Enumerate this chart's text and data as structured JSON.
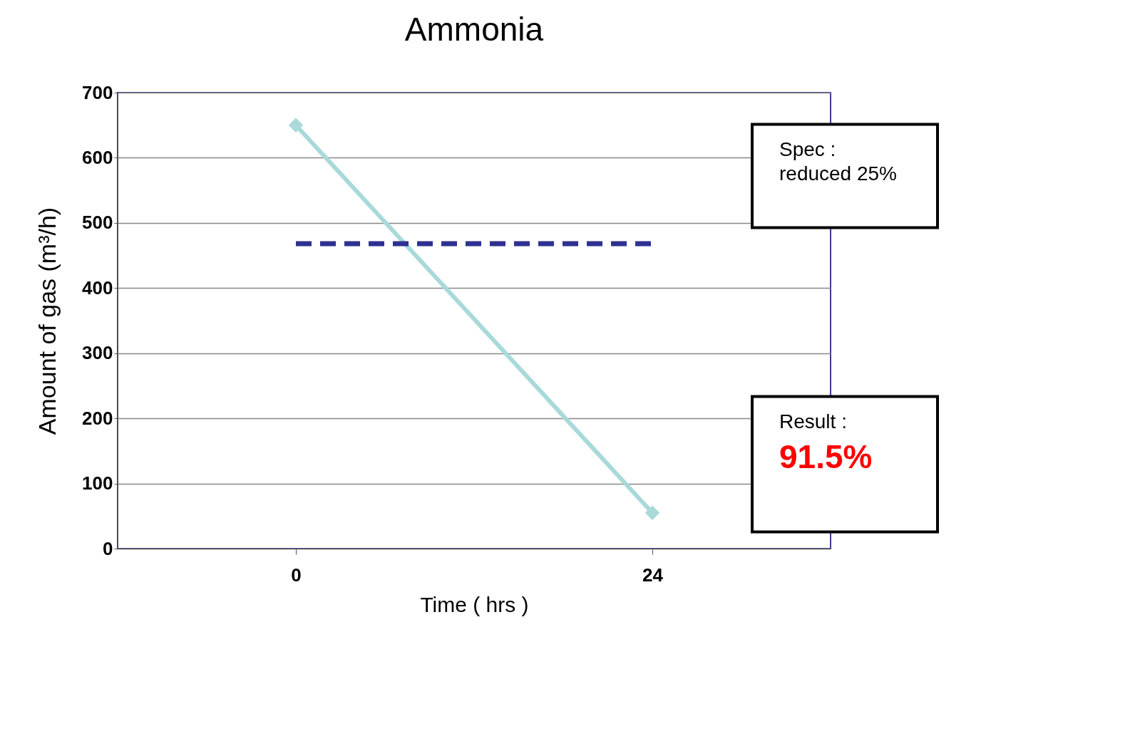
{
  "chart_data": {
    "type": "line",
    "title": "Ammonia",
    "xlabel": "Time ( hrs )",
    "ylabel": "Amount of gas (m³/h)",
    "categories": [
      "0",
      "24"
    ],
    "series": [
      {
        "color": "#a9d9d9",
        "values": [
          650,
          55
        ]
      }
    ],
    "ylim": [
      0,
      700
    ],
    "yticks": [
      0,
      100,
      200,
      300,
      400,
      500,
      600,
      700
    ],
    "grid": "y",
    "marker": "diamond",
    "ref_lines": [
      {
        "axis": "y",
        "value": 468,
        "color": "#2e3192",
        "line_style": "dashed"
      }
    ],
    "annotations": [
      "Spec :\nreduced 25%",
      "Result :\n91.5%"
    ]
  }
}
